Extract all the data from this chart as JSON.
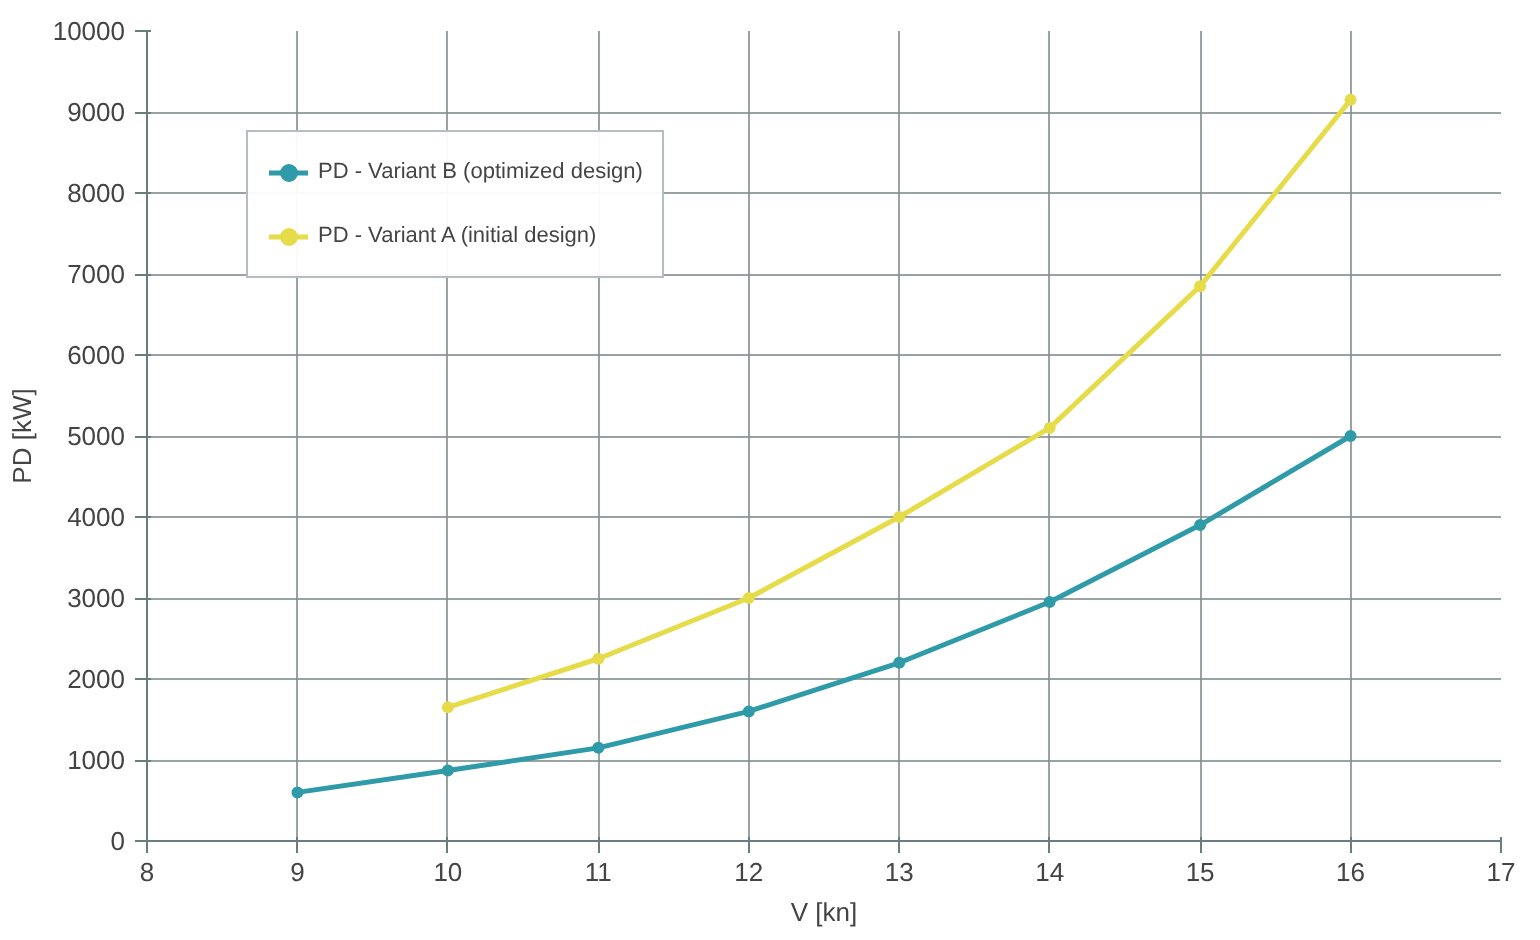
{
  "chart_data": {
    "type": "line",
    "xlabel": "V [kn]",
    "ylabel": "PD [kW]",
    "xlim": [
      8,
      17
    ],
    "xticks": [
      8,
      9,
      10,
      11,
      12,
      13,
      14,
      15,
      16,
      17
    ],
    "ylim": [
      0,
      10000
    ],
    "yticks": [
      0,
      1000,
      2000,
      3000,
      4000,
      5000,
      6000,
      7000,
      8000,
      9000,
      10000
    ],
    "grid": true,
    "legend": "top left",
    "marker": "circle",
    "line_style": "solid",
    "series": [
      {
        "name": "PD - Variant B (optimized design)",
        "color": "#2f9aa8",
        "x": [
          9,
          10,
          11,
          12,
          13,
          14,
          15,
          16
        ],
        "values": [
          600,
          870,
          1150,
          1600,
          2200,
          2950,
          3900,
          5000
        ]
      },
      {
        "name": "PD - Variant A (initial design)",
        "color": "#e6dc4a",
        "x": [
          10,
          11,
          12,
          13,
          14,
          15,
          16
        ],
        "values": [
          1650,
          2250,
          3000,
          4000,
          5100,
          6850,
          9150
        ]
      }
    ]
  }
}
